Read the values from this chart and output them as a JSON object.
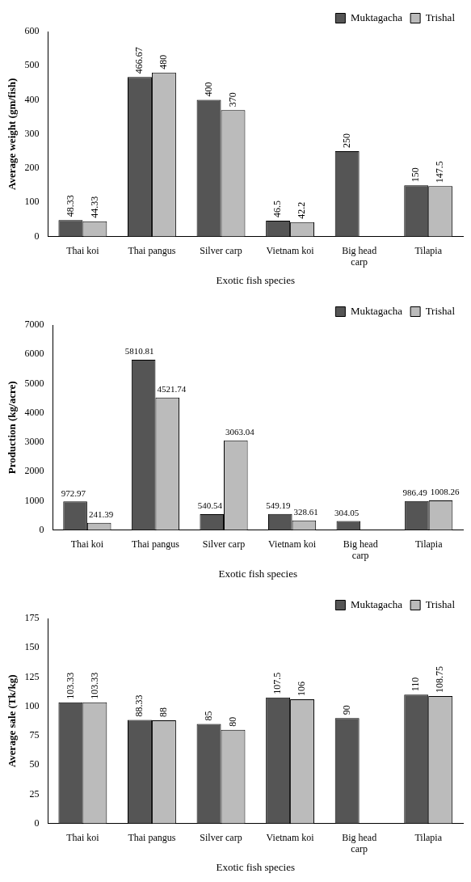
{
  "chart_data": [
    {
      "type": "bar",
      "xlabel": "Exotic fish species",
      "ylabel": "Average weight (gm/fish)",
      "categories": [
        "Thai koi",
        "Thai pangus",
        "Silver carp",
        "Vietnam koi",
        "Big head carp",
        "Tilapia"
      ],
      "series": [
        {
          "name": "Muktagacha",
          "color": "#555555",
          "values": [
            48.33,
            466.67,
            400,
            46.5,
            250,
            150
          ]
        },
        {
          "name": "Trishal",
          "color": "#bbbbbb",
          "values": [
            44.33,
            480,
            370,
            42.2,
            null,
            147.5
          ]
        }
      ],
      "ylim": [
        0,
        600
      ],
      "yticks": [
        0,
        100,
        200,
        300,
        400,
        500,
        600
      ],
      "grid": false,
      "legend": "top right",
      "data_labels": true
    },
    {
      "type": "bar",
      "xlabel": "Exotic fish species",
      "ylabel": "Production (kg/acre)",
      "categories": [
        "Thai koi",
        "Thai pangus",
        "Silver carp",
        "Vietnam koi",
        "Big head carp",
        "Tilapia"
      ],
      "series": [
        {
          "name": "Muktagacha",
          "color": "#555555",
          "values": [
            972.97,
            5810.81,
            540.54,
            549.19,
            304.05,
            986.49
          ]
        },
        {
          "name": "Trishal",
          "color": "#bbbbbb",
          "values": [
            241.39,
            4521.74,
            3063.04,
            328.61,
            null,
            1008.26
          ]
        }
      ],
      "ylim": [
        0,
        7000
      ],
      "yticks": [
        0,
        1000,
        2000,
        3000,
        4000,
        5000,
        6000,
        7000
      ],
      "grid": false,
      "legend": "top right",
      "data_labels": true
    },
    {
      "type": "bar",
      "xlabel": "Exotic fish species",
      "ylabel": "Average sale (Tk/kg)",
      "categories": [
        "Thai koi",
        "Thai pangus",
        "Silver carp",
        "Vietnam koi",
        "Big head carp",
        "Tilapia"
      ],
      "series": [
        {
          "name": "Muktagacha",
          "color": "#555555",
          "values": [
            103.33,
            88.33,
            85,
            107.5,
            90,
            110
          ]
        },
        {
          "name": "Trishal",
          "color": "#bbbbbb",
          "values": [
            103.33,
            88,
            80,
            106,
            null,
            108.75
          ]
        }
      ],
      "ylim": [
        0,
        175
      ],
      "yticks": [
        0,
        25,
        50,
        75,
        100,
        125,
        150,
        175
      ],
      "grid": false,
      "legend": "top right",
      "data_labels": true
    }
  ]
}
